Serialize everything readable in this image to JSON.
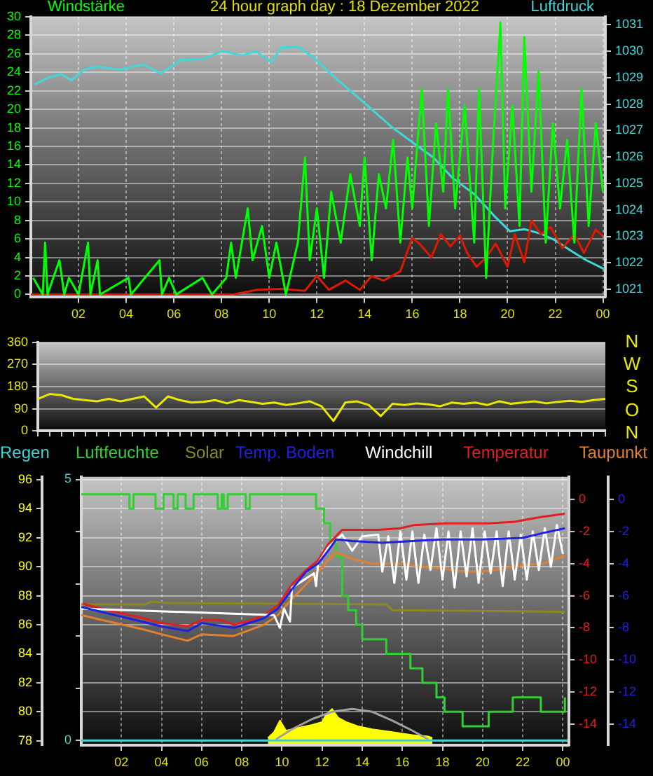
{
  "chart_data": [
    {
      "type": "line",
      "title": "24 hour graph day : 18 Dezember 2022",
      "ylabel": "Windstärke",
      "y2label": "Luftdruck",
      "xlim": [
        "2022-12-18T00:00",
        "2022-12-19T00:06"
      ],
      "xticks": [
        {
          "value": "2022-12-18T02:00",
          "label": "02"
        },
        {
          "value": "2022-12-18T04:00",
          "label": "04"
        },
        {
          "value": "2022-12-18T06:00",
          "label": "06"
        },
        {
          "value": "2022-12-18T08:00",
          "label": "08"
        },
        {
          "value": "2022-12-18T10:00",
          "label": "10"
        },
        {
          "value": "2022-12-18T12:00",
          "label": "12"
        },
        {
          "value": "2022-12-18T14:00",
          "label": "14"
        },
        {
          "value": "2022-12-18T16:00",
          "label": "16"
        },
        {
          "value": "2022-12-18T18:00",
          "label": "18"
        },
        {
          "value": "2022-12-18T20:00",
          "label": "20"
        },
        {
          "value": "2022-12-18T22:00",
          "label": "22"
        },
        {
          "value": "2022-12-19T00:00",
          "label": "00"
        }
      ],
      "ylim": [
        -0.3,
        30
      ],
      "yticks": [
        0,
        2,
        4,
        6,
        8,
        10,
        12,
        14,
        16,
        18,
        20,
        22,
        24,
        26,
        28,
        30
      ],
      "y2lim": [
        1020.7,
        1031.3
      ],
      "y2ticks": [
        1021,
        1022,
        1023,
        1024,
        1025,
        1026,
        1027,
        1028,
        1029,
        1030,
        1031
      ],
      "grid": true,
      "marker": "none",
      "series": [
        {
          "color": "#00ff00",
          "x": [
            "2022-12-18T00:06",
            "2022-12-18T00:30",
            "2022-12-18T00:36",
            "2022-12-18T00:42",
            "2022-12-18T01:12",
            "2022-12-18T01:24",
            "2022-12-18T01:36",
            "2022-12-18T02:00",
            "2022-12-18T02:24",
            "2022-12-18T02:30",
            "2022-12-18T02:48",
            "2022-12-18T02:54",
            "2022-12-18T04:06",
            "2022-12-18T04:12",
            "2022-12-18T05:24",
            "2022-12-18T05:30",
            "2022-12-18T05:48",
            "2022-12-18T06:06",
            "2022-12-18T07:12",
            "2022-12-18T07:36",
            "2022-12-18T08:12",
            "2022-12-18T08:24",
            "2022-12-18T08:36",
            "2022-12-18T09:06",
            "2022-12-18T09:18",
            "2022-12-18T09:42",
            "2022-12-18T10:00",
            "2022-12-18T10:18",
            "2022-12-18T10:42",
            "2022-12-18T11:12",
            "2022-12-18T11:30",
            "2022-12-18T11:42",
            "2022-12-18T12:00",
            "2022-12-18T12:18",
            "2022-12-18T12:36",
            "2022-12-18T13:00",
            "2022-12-18T13:24",
            "2022-12-18T13:48",
            "2022-12-18T14:00",
            "2022-12-18T14:18",
            "2022-12-18T14:36",
            "2022-12-18T14:54",
            "2022-12-18T15:12",
            "2022-12-18T15:30",
            "2022-12-18T15:48",
            "2022-12-18T16:00",
            "2022-12-18T16:24",
            "2022-12-18T16:42",
            "2022-12-18T17:00",
            "2022-12-18T17:18",
            "2022-12-18T17:30",
            "2022-12-18T17:48",
            "2022-12-18T18:12",
            "2022-12-18T18:36",
            "2022-12-18T18:48",
            "2022-12-18T19:06",
            "2022-12-18T19:24",
            "2022-12-18T19:42",
            "2022-12-18T19:54",
            "2022-12-18T20:12",
            "2022-12-18T20:30",
            "2022-12-18T20:42",
            "2022-12-18T21:00",
            "2022-12-18T21:18",
            "2022-12-18T21:36",
            "2022-12-18T21:54",
            "2022-12-18T22:12",
            "2022-12-18T22:30",
            "2022-12-18T22:48",
            "2022-12-18T23:06",
            "2022-12-18T23:24",
            "2022-12-18T23:42",
            "2022-12-19T00:00"
          ],
          "values": [
            1.8,
            0,
            5.6,
            0,
            3.7,
            0,
            1.8,
            0,
            5.6,
            0,
            3.7,
            0,
            1.8,
            0,
            3.7,
            0,
            1.8,
            0,
            1.8,
            0,
            1.8,
            5.6,
            1.8,
            9.3,
            3.7,
            7.4,
            1.8,
            5.6,
            0,
            5.6,
            14.8,
            3.7,
            9.3,
            1.8,
            11.1,
            5.6,
            13,
            7.4,
            14.8,
            3.7,
            13,
            9.3,
            16.7,
            5.6,
            14.8,
            9.3,
            22.2,
            7.4,
            18.5,
            11.1,
            22.2,
            9.3,
            20.4,
            5.6,
            22.2,
            1.8,
            16.7,
            29.4,
            9.3,
            20.4,
            7.4,
            27.8,
            11.1,
            24.1,
            5.6,
            18.5,
            9.3,
            16.7,
            5.6,
            22.2,
            7.4,
            18.5,
            11.1
          ]
        },
        {
          "color": "#dd1a00",
          "x": [
            "2022-12-18T00:00",
            "2022-12-18T08:30",
            "2022-12-18T09:30",
            "2022-12-18T10:30",
            "2022-12-18T11:30",
            "2022-12-18T12:00",
            "2022-12-18T12:30",
            "2022-12-18T13:12",
            "2022-12-18T13:48",
            "2022-12-18T14:18",
            "2022-12-18T14:48",
            "2022-12-18T15:30",
            "2022-12-18T16:00",
            "2022-12-18T16:18",
            "2022-12-18T16:48",
            "2022-12-18T17:12",
            "2022-12-18T17:36",
            "2022-12-18T18:00",
            "2022-12-18T18:18",
            "2022-12-18T18:42",
            "2022-12-18T19:06",
            "2022-12-18T19:30",
            "2022-12-18T20:00",
            "2022-12-18T20:18",
            "2022-12-18T20:42",
            "2022-12-18T21:00",
            "2022-12-18T21:24",
            "2022-12-18T21:48",
            "2022-12-18T22:18",
            "2022-12-18T22:48",
            "2022-12-18T23:12",
            "2022-12-18T23:42",
            "2022-12-19T00:00"
          ],
          "values": [
            0,
            0,
            0.5,
            0.6,
            0.4,
            2,
            0.5,
            1.5,
            0.5,
            2,
            1.5,
            2.5,
            6.1,
            5.5,
            4,
            6.5,
            5.2,
            6.4,
            4.5,
            3,
            4,
            5.5,
            3,
            6.5,
            3.5,
            8.0,
            6.5,
            7.3,
            5,
            6.5,
            4.5,
            7,
            6.3
          ]
        },
        {
          "color": "#40d8d8",
          "axis": "y2",
          "x": [
            "2022-12-18T00:09",
            "2022-12-18T00:44",
            "2022-12-18T01:16",
            "2022-12-18T01:42",
            "2022-12-18T02:14",
            "2022-12-18T02:48",
            "2022-12-18T03:44",
            "2022-12-18T04:42",
            "2022-12-18T05:28",
            "2022-12-18T06:18",
            "2022-12-18T07:12",
            "2022-12-18T08:02",
            "2022-12-18T08:54",
            "2022-12-18T09:26",
            "2022-12-18T10:06",
            "2022-12-18T10:30",
            "2022-12-18T11:12",
            "2022-12-18T11:54",
            "2022-12-18T12:27",
            "2022-12-18T13:12",
            "2022-12-18T14:04",
            "2022-12-18T15:08",
            "2022-12-18T16:00",
            "2022-12-18T16:54",
            "2022-12-18T17:42",
            "2022-12-18T18:36",
            "2022-12-18T19:26",
            "2022-12-18T20:06",
            "2022-12-18T20:42",
            "2022-12-18T21:24",
            "2022-12-18T22:00",
            "2022-12-18T22:42",
            "2022-12-18T23:18",
            "2022-12-19T00:04"
          ],
          "values": [
            1028.74,
            1029.0,
            1029.13,
            1028.9,
            1029.3,
            1029.42,
            1029.3,
            1029.5,
            1029.16,
            1029.67,
            1029.7,
            1030.0,
            1029.84,
            1030.0,
            1029.58,
            1030.14,
            1030.17,
            1029.75,
            1029.25,
            1028.66,
            1027.99,
            1027.14,
            1026.56,
            1025.97,
            1025.2,
            1024.6,
            1023.78,
            1023.19,
            1023.27,
            1023.1,
            1022.85,
            1022.43,
            1022.1,
            1021.76
          ]
        }
      ]
    },
    {
      "type": "line",
      "annotations": [
        "N",
        "W",
        "S",
        "O",
        "N"
      ],
      "categories": [
        null,
        null,
        null,
        null,
        null,
        null,
        null,
        null,
        null,
        null,
        null,
        null,
        null,
        null,
        null,
        null,
        null,
        null,
        null,
        null,
        null,
        null,
        null,
        null,
        null,
        null,
        null,
        null,
        null,
        null,
        null,
        null,
        null,
        null,
        null,
        null,
        null,
        null,
        null,
        null,
        null,
        null,
        null,
        null,
        null,
        null,
        null,
        null,
        null
      ],
      "ylim": [
        0,
        360
      ],
      "yticks": [
        0,
        90,
        180,
        270,
        360
      ],
      "tick_labels": "y",
      "grid": "y",
      "marker": "none",
      "series": [
        {
          "color": "#e8e800",
          "values": [
            130,
            150,
            145,
            130,
            125,
            120,
            130,
            120,
            130,
            140,
            95,
            140,
            125,
            115,
            118,
            125,
            112,
            125,
            118,
            110,
            115,
            105,
            112,
            120,
            100,
            40,
            115,
            120,
            105,
            60,
            110,
            105,
            112,
            108,
            100,
            115,
            110,
            115,
            105,
            120,
            110,
            115,
            120,
            112,
            118,
            122,
            118,
            125,
            130
          ]
        }
      ]
    },
    {
      "type": "line",
      "xlim": [
        "2022-12-18T00:00",
        "2022-12-19T00:18"
      ],
      "xticks": [
        {
          "value": "2022-12-18T02:00",
          "label": "02"
        },
        {
          "value": "2022-12-18T04:00",
          "label": "04"
        },
        {
          "value": "2022-12-18T06:00",
          "label": "06"
        },
        {
          "value": "2022-12-18T08:00",
          "label": "08"
        },
        {
          "value": "2022-12-18T10:00",
          "label": "10"
        },
        {
          "value": "2022-12-18T12:00",
          "label": "12"
        },
        {
          "value": "2022-12-18T14:00",
          "label": "14"
        },
        {
          "value": "2022-12-18T16:00",
          "label": "16"
        },
        {
          "value": "2022-12-18T18:00",
          "label": "18"
        },
        {
          "value": "2022-12-18T20:00",
          "label": "20"
        },
        {
          "value": "2022-12-18T22:00",
          "label": "22"
        },
        {
          "value": "2022-12-19T00:00",
          "label": "00"
        }
      ],
      "ylim": [
        77.7,
        96.2
      ],
      "yticks": [
        78,
        80,
        82,
        84,
        86,
        88,
        90,
        92,
        94,
        96
      ],
      "y3lim": [
        -0.09,
        5.05
      ],
      "y3ticks": [
        0,
        {
          "value": 1,
          "label": null
        },
        {
          "value": 2,
          "label": null
        },
        {
          "value": 3,
          "label": null
        },
        {
          "value": 4,
          "label": null
        },
        5
      ],
      "grid": true,
      "legend": "top",
      "marker": "none",
      "series": [
        {
          "name": "Regen",
          "color": "#40d0d0",
          "axis": "y3",
          "x": [
            "2022-12-18T00:00",
            "2022-12-19T00:18"
          ],
          "values": [
            0,
            0
          ]
        },
        {
          "name": "Luftfeuchte",
          "type": "step",
          "color": "#30d030",
          "x": [
            "2022-12-18T00:00",
            "2022-12-18T02:24",
            "2022-12-18T02:36",
            "2022-12-18T03:42",
            "2022-12-18T04:06",
            "2022-12-18T04:36",
            "2022-12-18T04:48",
            "2022-12-18T05:12",
            "2022-12-18T05:36",
            "2022-12-18T06:48",
            "2022-12-18T07:00",
            "2022-12-18T07:06",
            "2022-12-18T07:18",
            "2022-12-18T08:12",
            "2022-12-18T08:24",
            "2022-12-18T11:42",
            "2022-12-18T12:06",
            "2022-12-18T12:24",
            "2022-12-18T12:42",
            "2022-12-18T13:00",
            "2022-12-18T13:18",
            "2022-12-18T13:42",
            "2022-12-18T14:00",
            "2022-12-18T15:12",
            "2022-12-18T16:24",
            "2022-12-18T17:00",
            "2022-12-18T17:42",
            "2022-12-18T18:06",
            "2022-12-18T19:00",
            "2022-12-18T20:18",
            "2022-12-18T21:30",
            "2022-12-18T22:54",
            "2022-12-19T00:06"
          ],
          "values": [
            95,
            94,
            95,
            94,
            95,
            94,
            95,
            94,
            95,
            94,
            95,
            94,
            95,
            94,
            95,
            94,
            93,
            91.6,
            90.7,
            88,
            87,
            86,
            85,
            84,
            83,
            82,
            81,
            80,
            79,
            80,
            81,
            80,
            81
          ]
        },
        {
          "name": "Solar",
          "color": "#8a8a20",
          "x": [
            "2022-12-18T00:00",
            "2022-12-18T03:12",
            "2022-12-18T03:30",
            "2022-12-18T04:18",
            "2022-12-18T15:12",
            "2022-12-18T15:30",
            "2022-12-19T00:06"
          ],
          "values": [
            87.4,
            87.4,
            87.6,
            87.5,
            87.4,
            87.0,
            86.9
          ]
        },
        {
          "type": "area",
          "color": "#ffff00",
          "x": [
            "2022-12-18T09:18",
            "2022-12-18T09:36",
            "2022-12-18T09:54",
            "2022-12-18T10:12",
            "2022-12-18T10:48",
            "2022-12-18T11:30",
            "2022-12-18T12:00",
            "2022-12-18T12:12",
            "2022-12-18T12:30",
            "2022-12-18T12:48",
            "2022-12-18T13:12",
            "2022-12-18T13:48",
            "2022-12-18T14:30",
            "2022-12-18T15:30",
            "2022-12-18T16:30",
            "2022-12-18T17:18",
            "2022-12-18T17:30"
          ],
          "values": [
            78.2,
            78.6,
            79.4,
            78.7,
            78.9,
            79.1,
            79.3,
            79.8,
            80.2,
            79.6,
            79.3,
            79.0,
            78.8,
            78.6,
            78.4,
            78.3,
            78.2
          ]
        },
        {
          "color": "#a0a0a0",
          "x": [
            "2022-12-18T09:42",
            "2022-12-18T10:30",
            "2022-12-18T11:30",
            "2022-12-18T12:30",
            "2022-12-18T13:30",
            "2022-12-18T14:30",
            "2022-12-18T15:30",
            "2022-12-18T16:30",
            "2022-12-18T17:18"
          ],
          "values": [
            78.1,
            78.8,
            79.5,
            80.0,
            80.2,
            80.0,
            79.4,
            78.7,
            78.1
          ]
        }
      ]
    },
    {
      "type": "line",
      "xlim": [
        "2022-12-18T00:00",
        "2022-12-19T00:18"
      ],
      "y2lim": [
        -15.3,
        1.4
      ],
      "y2ticks": [
        0,
        -2,
        -4,
        -6,
        -8,
        -10,
        -12,
        -14
      ],
      "y3lim": [
        -15.3,
        1.4
      ],
      "y3ticks": [
        0,
        -2,
        -4,
        -6,
        -8,
        -10,
        -12,
        -14
      ],
      "tick_labels": "y",
      "legend": "top",
      "marker": "none",
      "series": [
        {
          "name": "Temp. Boden",
          "color": "#2020e0",
          "axis": "y3",
          "x": [
            "2022-12-18T00:00",
            "2022-12-18T04:00",
            "2022-12-18T05:18",
            "2022-12-18T06:00",
            "2022-12-18T07:36",
            "2022-12-18T09:06",
            "2022-12-18T09:48",
            "2022-12-18T10:30",
            "2022-12-18T11:12",
            "2022-12-18T11:48",
            "2022-12-18T12:18",
            "2022-12-18T12:42",
            "2022-12-18T13:30",
            "2022-12-18T15:00",
            "2022-12-18T16:30",
            "2022-12-18T18:00",
            "2022-12-18T20:00",
            "2022-12-18T22:00",
            "2022-12-18T23:00",
            "2022-12-19T00:06"
          ],
          "values": [
            -6.7,
            -7.9,
            -8.2,
            -7.7,
            -8.0,
            -7.4,
            -6.8,
            -5.6,
            -4.5,
            -4.0,
            -3.2,
            -2.5,
            -2.6,
            -2.7,
            -2.6,
            -2.5,
            -2.5,
            -2.4,
            -2.1,
            -1.8
          ]
        },
        {
          "name": "Windchill",
          "color": "#ffffff",
          "axis": "y2",
          "x": [
            "2022-12-18T00:00",
            "2022-12-18T09:36",
            "2022-12-18T09:54",
            "2022-12-18T10:06",
            "2022-12-18T10:24",
            "2022-12-18T10:30",
            "2022-12-18T11:36",
            "2022-12-18T11:42",
            "2022-12-18T11:48",
            "2022-12-18T12:18",
            "2022-12-18T13:00",
            "2022-12-18T13:30",
            "2022-12-18T14:00",
            "2022-12-18T14:48",
            "2022-12-18T15:00",
            "2022-12-18T15:18",
            "2022-12-18T15:36",
            "2022-12-18T15:54",
            "2022-12-18T16:12",
            "2022-12-18T16:30",
            "2022-12-18T16:48",
            "2022-12-18T17:06",
            "2022-12-18T17:24",
            "2022-12-18T17:42",
            "2022-12-18T18:00",
            "2022-12-18T18:18",
            "2022-12-18T18:36",
            "2022-12-18T18:54",
            "2022-12-18T19:12",
            "2022-12-18T19:30",
            "2022-12-18T19:48",
            "2022-12-18T20:06",
            "2022-12-18T20:24",
            "2022-12-18T20:42",
            "2022-12-18T21:00",
            "2022-12-18T21:18",
            "2022-12-18T21:36",
            "2022-12-18T21:54",
            "2022-12-18T22:12",
            "2022-12-18T22:30",
            "2022-12-18T22:48",
            "2022-12-18T23:06",
            "2022-12-18T23:24",
            "2022-12-18T23:42",
            "2022-12-19T00:00"
          ],
          "values": [
            -6.8,
            -7.2,
            -8.0,
            -6.8,
            -7.6,
            -5.5,
            -4.6,
            -5.4,
            -4.0,
            -3.0,
            -2.2,
            -3.2,
            -2.3,
            -2.2,
            -4.5,
            -2.3,
            -5.2,
            -2.0,
            -5.0,
            -2.0,
            -5.2,
            -2.2,
            -4.4,
            -1.8,
            -5.0,
            -2.0,
            -5.5,
            -2.0,
            -4.8,
            -1.8,
            -5.2,
            -2.0,
            -4.6,
            -2.0,
            -5.4,
            -2.0,
            -5.0,
            -2.2,
            -5.0,
            -2.0,
            -4.4,
            -1.8,
            -4.2,
            -1.6,
            -3.4
          ]
        },
        {
          "name": "Temperatur",
          "color": "#e02020",
          "axis": "y2",
          "x": [
            "2022-12-18T00:05",
            "2022-12-18T01:00",
            "2022-12-18T03:06",
            "2022-12-18T04:00",
            "2022-12-18T05:18",
            "2022-12-18T06:00",
            "2022-12-18T06:54",
            "2022-12-18T07:36",
            "2022-12-18T08:15",
            "2022-12-18T09:06",
            "2022-12-18T09:48",
            "2022-12-18T10:30",
            "2022-12-18T11:12",
            "2022-12-18T11:48",
            "2022-12-18T12:18",
            "2022-12-18T13:00",
            "2022-12-18T14:48",
            "2022-12-18T15:54",
            "2022-12-18T16:36",
            "2022-12-18T18:06",
            "2022-12-18T20:18",
            "2022-12-18T21:36",
            "2022-12-18T22:54",
            "2022-12-19T00:06"
          ],
          "values": [
            -6.5,
            -6.8,
            -7.4,
            -7.7,
            -7.9,
            -7.5,
            -7.5,
            -7.8,
            -7.6,
            -7.2,
            -6.6,
            -5.3,
            -4.4,
            -3.8,
            -2.8,
            -1.9,
            -1.9,
            -1.8,
            -1.6,
            -1.5,
            -1.5,
            -1.4,
            -1.1,
            -0.9
          ]
        },
        {
          "name": "Taupunkt",
          "color": "#e08030",
          "axis": "y2",
          "x": [
            "2022-12-18T00:00",
            "2022-12-18T01:00",
            "2022-12-18T03:06",
            "2022-12-18T04:00",
            "2022-12-18T05:18",
            "2022-12-18T06:00",
            "2022-12-18T07:36",
            "2022-12-18T08:15",
            "2022-12-18T09:06",
            "2022-12-18T09:48",
            "2022-12-18T10:30",
            "2022-12-18T11:12",
            "2022-12-18T11:48",
            "2022-12-18T12:18",
            "2022-12-18T12:42",
            "2022-12-18T13:30",
            "2022-12-18T14:30",
            "2022-12-18T16:00",
            "2022-12-18T17:00",
            "2022-12-18T18:00",
            "2022-12-18T19:00",
            "2022-12-18T20:00",
            "2022-12-18T21:00",
            "2022-12-18T22:00",
            "2022-12-18T23:00",
            "2022-12-19T00:06"
          ],
          "values": [
            -7.2,
            -7.5,
            -8.1,
            -8.4,
            -8.8,
            -8.4,
            -8.5,
            -8.2,
            -7.8,
            -7.2,
            -6.2,
            -5.3,
            -4.5,
            -3.8,
            -3.3,
            -3.7,
            -4.0,
            -4.0,
            -4.2,
            -4.3,
            -4.5,
            -4.5,
            -4.3,
            -4.1,
            -4.0,
            -3.5
          ]
        }
      ]
    }
  ]
}
